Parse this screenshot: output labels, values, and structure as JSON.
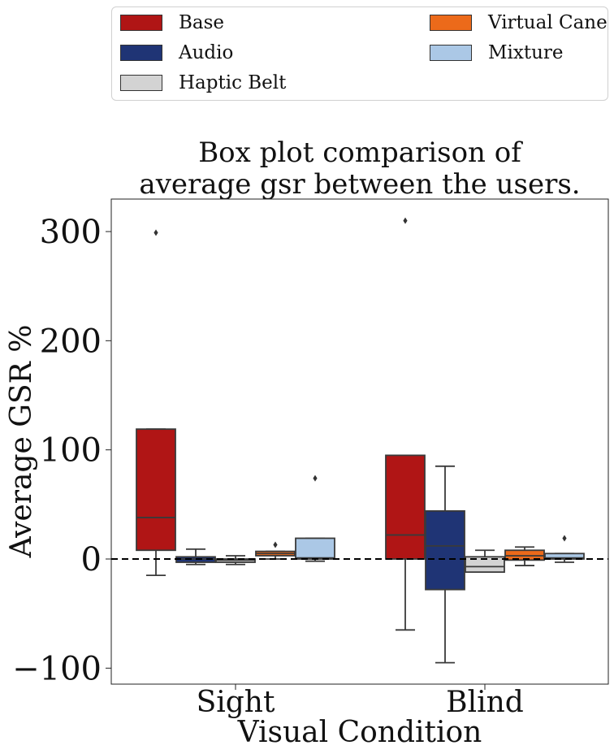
{
  "chart_data": {
    "type": "box",
    "title": [
      "Box plot comparison of",
      "average gsr between the users."
    ],
    "xlabel": "Visual Condition",
    "ylabel": "Average GSR %",
    "ylim": [
      -115,
      330
    ],
    "yticks": [
      300,
      200,
      100,
      0,
      -100
    ],
    "ytick_labels": [
      "300",
      "200",
      "100",
      "0",
      "−100"
    ],
    "categories": [
      "Sight",
      "Blind"
    ],
    "reference_line": 0,
    "legend_position": "top, outside plot",
    "series": [
      {
        "name": "Base",
        "color": "#b01515",
        "boxes": [
          {
            "whislo": -15,
            "q1": 8,
            "med": 38,
            "q3": 119,
            "whishi": 119,
            "fliers": [
              299
            ]
          },
          {
            "whislo": -65,
            "q1": 0,
            "med": 22,
            "q3": 95,
            "whishi": 95,
            "fliers": [
              310
            ]
          }
        ]
      },
      {
        "name": "Audio",
        "color": "#1f3475",
        "boxes": [
          {
            "whislo": -5,
            "q1": -3,
            "med": 0,
            "q3": 2,
            "whishi": 9,
            "fliers": []
          },
          {
            "whislo": -95,
            "q1": -28,
            "med": 12,
            "q3": 44,
            "whishi": 85,
            "fliers": []
          }
        ]
      },
      {
        "name": "Haptic Belt",
        "color": "#d3d3d3",
        "boxes": [
          {
            "whislo": -5,
            "q1": -3,
            "med": -1,
            "q3": 0,
            "whishi": 3,
            "fliers": []
          },
          {
            "whislo": -12,
            "q1": -12,
            "med": -7,
            "q3": 2,
            "whishi": 8,
            "fliers": []
          }
        ]
      },
      {
        "name": "Virtual Cane",
        "color": "#ec6a1a",
        "boxes": [
          {
            "whislo": 0,
            "q1": 3,
            "med": 5,
            "q3": 7,
            "whishi": 7,
            "fliers": [
              13
            ]
          },
          {
            "whislo": -6,
            "q1": -1,
            "med": 3,
            "q3": 8,
            "whishi": 11,
            "fliers": []
          }
        ]
      },
      {
        "name": "Mixture",
        "color": "#abc8e6",
        "boxes": [
          {
            "whislo": -2,
            "q1": 0,
            "med": 1,
            "q3": 19,
            "whishi": 19,
            "fliers": [
              74
            ]
          },
          {
            "whislo": -3,
            "q1": 0,
            "med": 1,
            "q3": 5,
            "whishi": 5,
            "fliers": [
              19
            ]
          }
        ]
      }
    ]
  }
}
